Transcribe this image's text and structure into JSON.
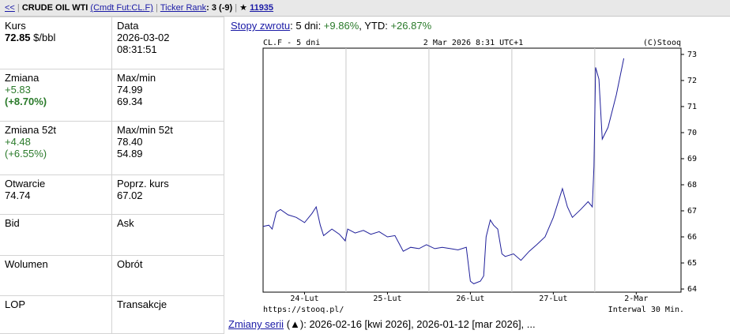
{
  "header": {
    "back": "<<",
    "title": "CRUDE OIL WTI",
    "symbol": "(Cmdt Fut:CL.F)",
    "rank_link": "Ticker Rank",
    "rank": ": 3 (-9)",
    "star": "★",
    "star_count": "11935"
  },
  "quote_table": {
    "rows": [
      [
        {
          "label": "Kurs",
          "lines": [
            [
              {
                "text": "72.85",
                "style": "bold"
              },
              {
                "text": " $/bbl",
                "style": "plain"
              }
            ]
          ]
        },
        {
          "label": "Data",
          "lines": [
            [
              {
                "text": "2026-03-02",
                "style": "plain"
              }
            ],
            [
              {
                "text": "08:31:51",
                "style": "plain"
              }
            ]
          ]
        }
      ],
      [
        {
          "label": "Zmiana",
          "lines": [
            [
              {
                "text": "+5.83",
                "style": "green"
              }
            ],
            [
              {
                "text": "(+8.70%)",
                "style": "green-bold"
              }
            ]
          ]
        },
        {
          "label": "Max/min",
          "lines": [
            [
              {
                "text": "74.99",
                "style": "plain"
              }
            ],
            [
              {
                "text": "69.34",
                "style": "plain"
              }
            ]
          ]
        }
      ],
      [
        {
          "label": "Zmiana 52t",
          "lines": [
            [
              {
                "text": "+4.48",
                "style": "green"
              }
            ],
            [
              {
                "text": "(+6.55%)",
                "style": "green"
              }
            ]
          ]
        },
        {
          "label": "Max/min 52t",
          "lines": [
            [
              {
                "text": "78.40",
                "style": "plain"
              }
            ],
            [
              {
                "text": "54.89",
                "style": "plain"
              }
            ]
          ]
        }
      ],
      [
        {
          "label": "Otwarcie",
          "lines": [
            [
              {
                "text": "74.74",
                "style": "plain"
              }
            ]
          ]
        },
        {
          "label": "Poprz. kurs",
          "lines": [
            [
              {
                "text": "67.02",
                "style": "plain"
              }
            ]
          ]
        }
      ],
      [
        {
          "label": "Bid",
          "lines": []
        },
        {
          "label": "Ask",
          "lines": []
        }
      ],
      [
        {
          "label": "Wolumen",
          "lines": []
        },
        {
          "label": "Obrót",
          "lines": []
        }
      ],
      [
        {
          "label": "LOP",
          "lines": []
        },
        {
          "label": "Transakcje",
          "lines": []
        }
      ]
    ]
  },
  "returns": {
    "link": "Stopy zwrotu",
    "parts": [
      {
        "text": ": 5 dni: ",
        "style": "plain"
      },
      {
        "text": "+9.86%",
        "style": "green"
      },
      {
        "text": ", YTD: ",
        "style": "plain"
      },
      {
        "text": "+26.87%",
        "style": "green"
      }
    ]
  },
  "series_changes": {
    "link": "Zmiany serii",
    "text": " (▲): 2026-02-16 [kwi 2026], 2026-01-12 [mar 2026], ..."
  },
  "chart_data": {
    "type": "line",
    "title": "CL.F - 5 dni",
    "subtitle": "2 Mar 2026 8:31 UTC+1",
    "credit": "(C)Stooq",
    "source": "https://stooq.pl/",
    "note": "Interwal 30 Min.",
    "x": [
      0,
      0.07,
      0.11,
      0.16,
      0.21,
      0.3,
      0.4,
      0.5,
      0.59,
      0.64,
      0.69,
      0.73,
      0.83,
      0.92,
      0.99,
      1.02,
      1.11,
      1.21,
      1.3,
      1.4,
      1.5,
      1.59,
      1.69,
      1.78,
      1.88,
      1.97,
      2.07,
      2.16,
      2.26,
      2.35,
      2.45,
      2.5,
      2.54,
      2.62,
      2.66,
      2.69,
      2.74,
      2.78,
      2.83,
      2.88,
      2.92,
      3.02,
      3.11,
      3.21,
      3.3,
      3.4,
      3.5,
      3.61,
      3.67,
      3.73,
      3.83,
      3.92,
      3.97,
      3.99,
      4.01,
      4.05,
      4.09,
      4.16,
      4.26,
      4.35
    ],
    "series": [
      {
        "name": "CL.F",
        "color": "#1f1f9a",
        "values": [
          66.4,
          66.45,
          66.3,
          66.95,
          67.05,
          66.85,
          66.75,
          66.55,
          66.9,
          67.15,
          66.45,
          66.05,
          66.3,
          66.1,
          65.85,
          66.3,
          66.15,
          66.25,
          66.1,
          66.2,
          66.0,
          66.05,
          65.45,
          65.6,
          65.55,
          65.7,
          65.55,
          65.6,
          65.55,
          65.5,
          65.6,
          64.3,
          64.2,
          64.3,
          64.5,
          66.0,
          66.65,
          66.45,
          66.3,
          65.35,
          65.25,
          65.35,
          65.1,
          65.45,
          65.7,
          66.0,
          66.75,
          67.85,
          67.15,
          66.75,
          67.05,
          67.35,
          67.15,
          68.7,
          72.5,
          72.05,
          69.75,
          70.2,
          71.45,
          72.85
        ]
      }
    ],
    "xlim": [
      0,
      5.04
    ],
    "xticks": [
      {
        "value": 0.5,
        "label": "24-Lut"
      },
      {
        "value": 1.5,
        "label": "25-Lut"
      },
      {
        "value": 2.5,
        "label": "26-Lut"
      },
      {
        "value": 3.5,
        "label": "27-Lut"
      },
      {
        "value": 4.5,
        "label": "2-Mar"
      }
    ],
    "xgrid": [
      1,
      2,
      3,
      4
    ],
    "ylim": [
      63.88,
      73.24
    ],
    "yticks": [
      64,
      65,
      66,
      67,
      68,
      69,
      70,
      71,
      72,
      73
    ],
    "y_axis_side": "right",
    "grid": "vertical"
  }
}
